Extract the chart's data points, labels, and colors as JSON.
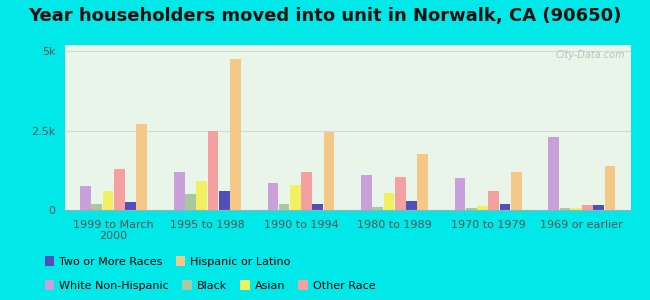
{
  "title": "Year householders moved into unit in Norwalk, CA (90650)",
  "categories": [
    "1999 to March\n2000",
    "1995 to 1998",
    "1990 to 1994",
    "1980 to 1989",
    "1970 to 1979",
    "1969 or earlier"
  ],
  "series_order": [
    "White Non-Hispanic",
    "Black",
    "Asian",
    "Other Race",
    "Two or More Races",
    "Hispanic or Latino"
  ],
  "series": {
    "White Non-Hispanic": [
      750,
      1200,
      850,
      1100,
      1000,
      2300
    ],
    "Black": [
      200,
      500,
      200,
      100,
      50,
      50
    ],
    "Asian": [
      600,
      900,
      800,
      550,
      130,
      70
    ],
    "Other Race": [
      1300,
      2500,
      1200,
      1050,
      600,
      150
    ],
    "Two or More Races": [
      250,
      600,
      200,
      270,
      180,
      150
    ],
    "Hispanic or Latino": [
      2700,
      4750,
      2450,
      1750,
      1200,
      1400
    ]
  },
  "colors": {
    "White Non-Hispanic": "#c9a0dc",
    "Black": "#a8c8a0",
    "Asian": "#f0f060",
    "Other Race": "#f5a0a0",
    "Two or More Races": "#5050bb",
    "Hispanic or Latino": "#f5c888"
  },
  "ylim": [
    0,
    5200
  ],
  "ytick_vals": [
    0,
    2500,
    5000
  ],
  "ytick_labels": [
    "0",
    "2.5k",
    "5k"
  ],
  "background_color": "#00e8e8",
  "plot_bg_color": "#e8f5e8",
  "watermark": "City-Data.com",
  "title_fontsize": 13,
  "tick_fontsize": 8,
  "legend_fontsize": 8,
  "legend_row1": [
    "White Non-Hispanic",
    "Black",
    "Asian",
    "Other Race"
  ],
  "legend_row2": [
    "Two or More Races",
    "Hispanic or Latino"
  ]
}
